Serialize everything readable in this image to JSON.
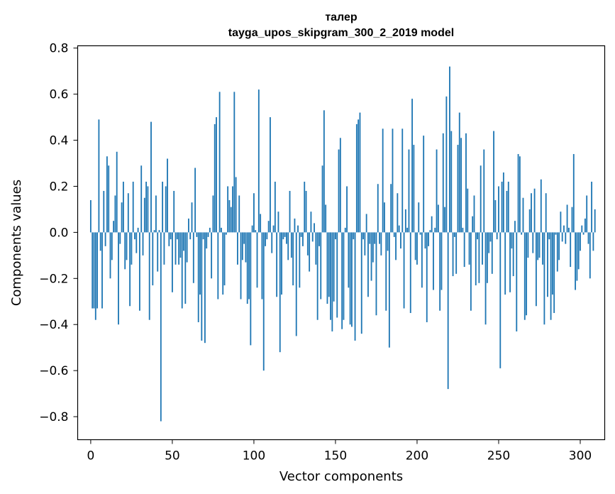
{
  "chart_data": {
    "type": "bar",
    "title": "талер",
    "subtitle": "tayga_upos_skipgram_300_2_2019 model",
    "xlabel": "Vector components",
    "ylabel": "Components values",
    "xlim": [
      -8,
      315
    ],
    "ylim": [
      -0.9,
      0.81
    ],
    "xticks": [
      0,
      50,
      100,
      150,
      200,
      250,
      300
    ],
    "xtick_labels": [
      "0",
      "50",
      "100",
      "150",
      "200",
      "250",
      "300"
    ],
    "yticks": [
      -0.8,
      -0.6,
      -0.4,
      -0.2,
      0.0,
      0.2,
      0.4,
      0.6,
      0.8
    ],
    "ytick_labels": [
      "−0.8",
      "−0.6",
      "−0.4",
      "−0.2",
      "0.0",
      "0.2",
      "0.4",
      "0.6",
      "0.8"
    ],
    "bar_color": "#1f77b4",
    "categories_start": 0,
    "values": [
      0.14,
      -0.33,
      -0.33,
      -0.38,
      -0.33,
      0.49,
      -0.08,
      -0.33,
      0.18,
      -0.06,
      0.33,
      0.29,
      -0.2,
      -0.12,
      0.05,
      0.16,
      0.35,
      -0.4,
      -0.05,
      0.13,
      0.22,
      -0.16,
      -0.12,
      0.17,
      -0.32,
      -0.14,
      0.22,
      -0.03,
      -0.09,
      0.02,
      -0.34,
      0.29,
      -0.1,
      0.15,
      0.22,
      0.2,
      -0.38,
      0.48,
      -0.23,
      0.01,
      0.16,
      -0.17,
      0.01,
      -0.82,
      0.22,
      -0.14,
      0.2,
      0.32,
      -0.06,
      -0.03,
      -0.26,
      0.18,
      -0.14,
      -0.03,
      -0.14,
      -0.11,
      -0.33,
      -0.08,
      -0.31,
      -0.13,
      0.06,
      -0.03,
      0.13,
      -0.22,
      0.28,
      -0.02,
      -0.39,
      -0.27,
      -0.47,
      -0.03,
      -0.48,
      -0.07,
      -0.02,
      0.02,
      -0.2,
      0.16,
      0.47,
      0.5,
      -0.29,
      0.61,
      0.02,
      -0.27,
      -0.23,
      -0.01,
      0.2,
      0.14,
      0.11,
      0.2,
      0.61,
      0.24,
      -0.14,
      0.16,
      -0.29,
      -0.12,
      -0.05,
      -0.13,
      -0.31,
      -0.29,
      -0.49,
      0.03,
      0.17,
      0.01,
      -0.24,
      0.62,
      0.08,
      -0.29,
      -0.6,
      -0.06,
      -0.03,
      0.05,
      0.5,
      -0.09,
      0.03,
      0.22,
      -0.28,
      0.09,
      -0.52,
      -0.27,
      -0.03,
      -0.02,
      -0.05,
      -0.12,
      0.18,
      -0.11,
      -0.23,
      0.06,
      -0.45,
      0.03,
      -0.24,
      -0.02,
      -0.06,
      0.22,
      0.18,
      -0.1,
      -0.17,
      0.09,
      -0.04,
      0.04,
      -0.14,
      -0.38,
      -0.06,
      -0.29,
      0.29,
      0.53,
      0.12,
      -0.31,
      -0.28,
      -0.38,
      -0.43,
      -0.3,
      -0.03,
      -0.37,
      0.36,
      0.41,
      -0.42,
      -0.38,
      0.02,
      0.2,
      -0.24,
      -0.4,
      -0.41,
      -0.03,
      -0.47,
      0.47,
      0.49,
      0.52,
      -0.44,
      -0.03,
      -0.1,
      0.08,
      -0.28,
      -0.05,
      -0.21,
      -0.13,
      -0.05,
      -0.36,
      0.21,
      -0.05,
      -0.1,
      0.45,
      0.13,
      -0.34,
      -0.08,
      -0.5,
      0.21,
      0.45,
      -0.02,
      -0.12,
      0.17,
      0.03,
      -0.07,
      0.45,
      -0.33,
      0.1,
      0.02,
      0.36,
      -0.35,
      0.58,
      0.38,
      -0.12,
      -0.14,
      0.13,
      -0.01,
      -0.24,
      0.42,
      -0.07,
      -0.39,
      -0.06,
      0.01,
      0.07,
      -0.25,
      0.02,
      0.36,
      0.12,
      -0.34,
      -0.25,
      0.43,
      0.11,
      0.59,
      -0.68,
      0.72,
      0.44,
      -0.19,
      -0.02,
      -0.18,
      0.38,
      0.52,
      0.41,
      0.02,
      -0.15,
      0.43,
      0.19,
      -0.14,
      -0.34,
      0.07,
      0.16,
      -0.23,
      -0.03,
      -0.22,
      0.29,
      -0.14,
      0.36,
      -0.4,
      -0.22,
      -0.09,
      -0.04,
      -0.18,
      0.44,
      0.14,
      -0.03,
      0.2,
      -0.59,
      0.22,
      0.26,
      -0.27,
      0.18,
      0.22,
      -0.26,
      -0.07,
      -0.19,
      0.05,
      -0.43,
      0.34,
      0.33,
      -0.01,
      0.15,
      -0.38,
      -0.36,
      -0.11,
      0.1,
      0.17,
      -0.09,
      0.19,
      -0.32,
      -0.12,
      -0.11,
      0.23,
      -0.14,
      -0.4,
      0.17,
      -0.28,
      -0.03,
      -0.38,
      -0.27,
      -0.35,
      -0.01,
      -0.17,
      -0.12,
      0.09,
      -0.04,
      0.03,
      -0.05,
      0.12,
      0.02,
      -0.15,
      0.11,
      0.34,
      -0.25,
      -0.21,
      -0.16,
      -0.08,
      0.03,
      -0.01,
      0.06,
      0.16,
      -0.05,
      -0.2,
      0.22,
      -0.08,
      0.1
    ]
  }
}
